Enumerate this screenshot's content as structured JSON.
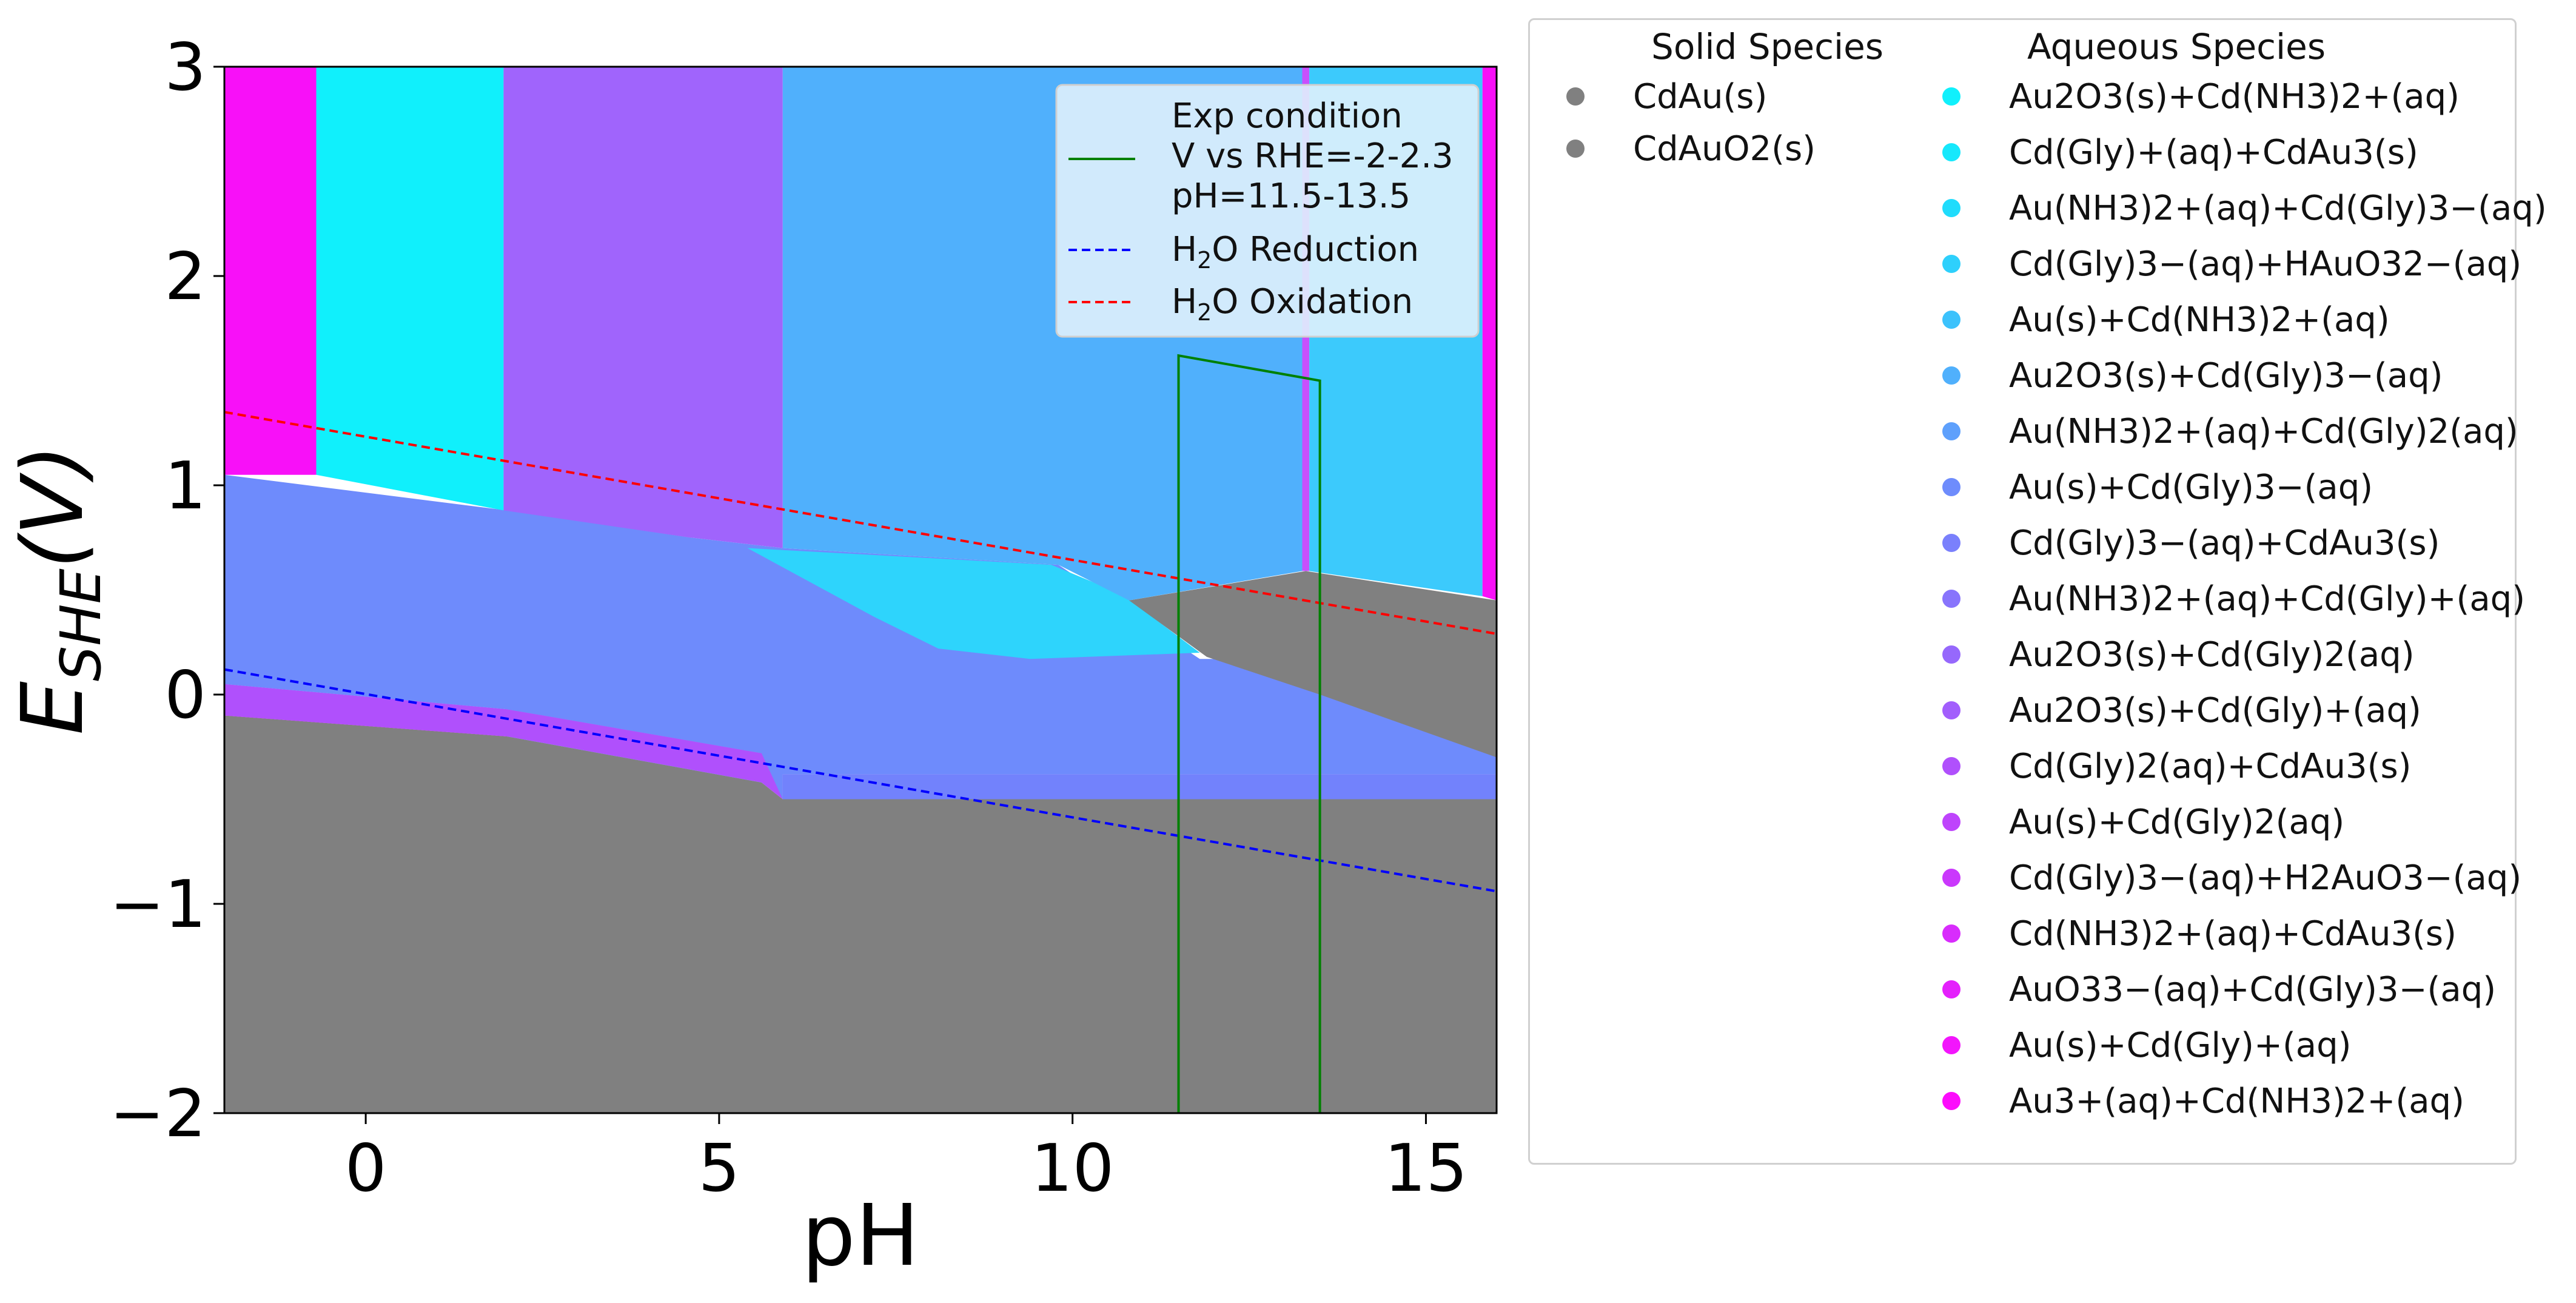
{
  "chart_data": {
    "type": "area",
    "xlabel": "pH",
    "ylabel": "E_SHE(V)",
    "xlim": [
      -2,
      16
    ],
    "ylim": [
      -2,
      3
    ],
    "xticks": [
      "0",
      "5",
      "10",
      "15"
    ],
    "xtick_values": [
      0,
      5,
      10,
      15
    ],
    "yticks": [
      "−2",
      "−1",
      "0",
      "1",
      "2",
      "3"
    ],
    "ytick_values": [
      -2,
      -1,
      0,
      1,
      2,
      3
    ],
    "grid": false,
    "regions": [
      {
        "color": "#808080",
        "points": [
          [
            -2,
            -2
          ],
          [
            16,
            -2
          ],
          [
            16,
            -0.5
          ],
          [
            5.9,
            -0.5
          ],
          [
            5.6,
            -0.42
          ],
          [
            2,
            -0.2
          ],
          [
            -2,
            -0.1
          ]
        ]
      },
      {
        "color": "#f810f8",
        "points": [
          [
            -2,
            0.05
          ],
          [
            2,
            -0.07
          ],
          [
            2,
            -0.2
          ],
          [
            -2,
            -0.1
          ]
        ]
      },
      {
        "color": "#f810f8",
        "points": [
          [
            2,
            0.88
          ],
          [
            4.6,
            0.75
          ],
          [
            5.6,
            0.6
          ],
          [
            5.6,
            -0.28
          ],
          [
            2,
            -0.07
          ]
        ]
      },
      {
        "color": "#2ed4fc",
        "points": [
          [
            2,
            -0.07
          ],
          [
            5.6,
            -0.28
          ],
          [
            5.6,
            -0.42
          ],
          [
            2,
            -0.2
          ]
        ]
      },
      {
        "color": "#b050fc",
        "points": [
          [
            -2,
            0.05
          ],
          [
            2,
            -0.07
          ],
          [
            5.6,
            -0.28
          ],
          [
            5.9,
            -0.3
          ],
          [
            5.9,
            -0.5
          ],
          [
            5.6,
            -0.42
          ],
          [
            2,
            -0.2
          ],
          [
            -2,
            -0.1
          ]
        ]
      },
      {
        "color": "#6e8bfc",
        "points": [
          [
            -2,
            1.05
          ],
          [
            2,
            0.88
          ],
          [
            4.6,
            0.75
          ],
          [
            5.9,
            0.7
          ],
          [
            9.8,
            0.62
          ],
          [
            11.8,
            0.17
          ],
          [
            16,
            0.17
          ],
          [
            16,
            -0.38
          ],
          [
            5.9,
            -0.38
          ],
          [
            5.9,
            -0.5
          ],
          [
            16,
            -0.5
          ],
          [
            16,
            -0.5
          ],
          [
            5.9,
            -0.5
          ],
          [
            5.6,
            -0.28
          ],
          [
            2,
            -0.07
          ],
          [
            -2,
            0.05
          ]
        ]
      },
      {
        "color": "#7282fc",
        "points": [
          [
            5.9,
            -0.38
          ],
          [
            16,
            -0.38
          ],
          [
            16,
            -0.5
          ],
          [
            5.9,
            -0.5
          ]
        ]
      },
      {
        "color": "#2ed4fc",
        "points": [
          [
            5.4,
            0.7
          ],
          [
            9.7,
            0.62
          ],
          [
            10.7,
            0.48
          ],
          [
            11.8,
            0.2
          ],
          [
            9.4,
            0.17
          ],
          [
            8.1,
            0.22
          ],
          [
            7.2,
            0.37
          ]
        ]
      },
      {
        "color": "#808080",
        "points": [
          [
            10.8,
            0.45
          ],
          [
            13.3,
            0.59
          ],
          [
            16,
            0.45
          ],
          [
            16,
            -0.3
          ],
          [
            13.5,
            0.0
          ],
          [
            11.9,
            0.18
          ]
        ]
      },
      {
        "color": "#f810f8",
        "points": [
          [
            -2,
            3
          ],
          [
            -0.7,
            3
          ],
          [
            -0.7,
            1.05
          ],
          [
            -2,
            1.05
          ]
        ]
      },
      {
        "color": "#10f0fc",
        "points": [
          [
            -0.7,
            3
          ],
          [
            1.95,
            3
          ],
          [
            1.95,
            0.88
          ],
          [
            -0.7,
            1.05
          ]
        ]
      },
      {
        "color": "#a064fc",
        "points": [
          [
            1.95,
            3
          ],
          [
            5.9,
            3
          ],
          [
            5.9,
            0.7
          ],
          [
            4.6,
            0.75
          ],
          [
            1.95,
            0.88
          ]
        ]
      },
      {
        "color": "#50b0fc",
        "points": [
          [
            5.9,
            3
          ],
          [
            13.25,
            3
          ],
          [
            13.25,
            0.59
          ],
          [
            10.8,
            0.45
          ],
          [
            9.8,
            0.62
          ],
          [
            5.9,
            0.7
          ]
        ]
      },
      {
        "color": "#c850fc",
        "points": [
          [
            13.25,
            3
          ],
          [
            13.35,
            3
          ],
          [
            13.35,
            0.59
          ],
          [
            13.25,
            0.59
          ]
        ]
      },
      {
        "color": "#3ccafc",
        "points": [
          [
            13.35,
            3
          ],
          [
            15.8,
            3
          ],
          [
            15.8,
            0.47
          ],
          [
            13.35,
            0.59
          ]
        ]
      },
      {
        "color": "#f810f8",
        "points": [
          [
            15.8,
            3
          ],
          [
            16,
            3
          ],
          [
            16,
            0.45
          ],
          [
            15.8,
            0.47
          ]
        ]
      }
    ],
    "lines": [
      {
        "name": "H2O Reduction",
        "color": "#0000ff",
        "dash": true,
        "x": [
          -2,
          16
        ],
        "y": [
          0.12,
          -0.94
        ]
      },
      {
        "name": "H2O Oxidation",
        "color": "#ff0000",
        "dash": true,
        "x": [
          -2,
          16
        ],
        "y": [
          1.35,
          0.29
        ]
      },
      {
        "name": "Exp condition",
        "color": "#008000",
        "dash": false,
        "x": [
          11.5,
          11.5,
          13.5,
          13.5
        ],
        "y": [
          -2,
          1.62,
          1.5,
          -2
        ]
      }
    ]
  },
  "inner_legend": {
    "exp_line1": "Exp condition",
    "exp_line2": "V vs RHE=-2-2.3",
    "exp_line3": "pH=11.5-13.5",
    "reduction_label": "H2O Reduction",
    "oxidation_label": "H2O Oxidation"
  },
  "species_legend": {
    "solid_header": "Solid Species",
    "aqueous_header": "Aqueous Species",
    "solid": [
      {
        "label": "CdAu(s)",
        "color": "#808080"
      },
      {
        "label": "CdAuO2(s)",
        "color": "#808080"
      }
    ],
    "aqueous": [
      {
        "label": "Au2O3(s)+Cd(NH3)2+(aq)",
        "color": "#10f0fc"
      },
      {
        "label": "Cd(Gly)+(aq)+CdAu3(s)",
        "color": "#16e8fc"
      },
      {
        "label": "Au(NH3)2+(aq)+Cd(Gly)3−(aq)",
        "color": "#20dcfc"
      },
      {
        "label": "Cd(Gly)3−(aq)+HAuO32−(aq)",
        "color": "#2ed0fc"
      },
      {
        "label": "Au(s)+Cd(NH3)2+(aq)",
        "color": "#3cc2fc"
      },
      {
        "label": "Au2O3(s)+Cd(Gly)3−(aq)",
        "color": "#50b0fc"
      },
      {
        "label": "Au(NH3)2+(aq)+Cd(Gly)2(aq)",
        "color": "#5ea0fc"
      },
      {
        "label": "Au(s)+Cd(Gly)3−(aq)",
        "color": "#6e8cfc"
      },
      {
        "label": "Cd(Gly)3−(aq)+CdAu3(s)",
        "color": "#7a80fc"
      },
      {
        "label": "Au(NH3)2+(aq)+Cd(Gly)+(aq)",
        "color": "#8874fc"
      },
      {
        "label": "Au2O3(s)+Cd(Gly)2(aq)",
        "color": "#9668fc"
      },
      {
        "label": "Au2O3(s)+Cd(Gly)+(aq)",
        "color": "#a25efc"
      },
      {
        "label": "Cd(Gly)2(aq)+CdAu3(s)",
        "color": "#b050fc"
      },
      {
        "label": "Au(s)+Cd(Gly)2(aq)",
        "color": "#be44fc"
      },
      {
        "label": "Cd(Gly)3−(aq)+H2AuO3−(aq)",
        "color": "#ca38fc"
      },
      {
        "label": "Cd(NH3)2+(aq)+CdAu3(s)",
        "color": "#d82cfc"
      },
      {
        "label": "AuO33−(aq)+Cd(Gly)3−(aq)",
        "color": "#e420fc"
      },
      {
        "label": "Au(s)+Cd(Gly)+(aq)",
        "color": "#f216fc"
      },
      {
        "label": "Au3+(aq)+Cd(NH3)2+(aq)",
        "color": "#fc0cfc"
      }
    ]
  }
}
